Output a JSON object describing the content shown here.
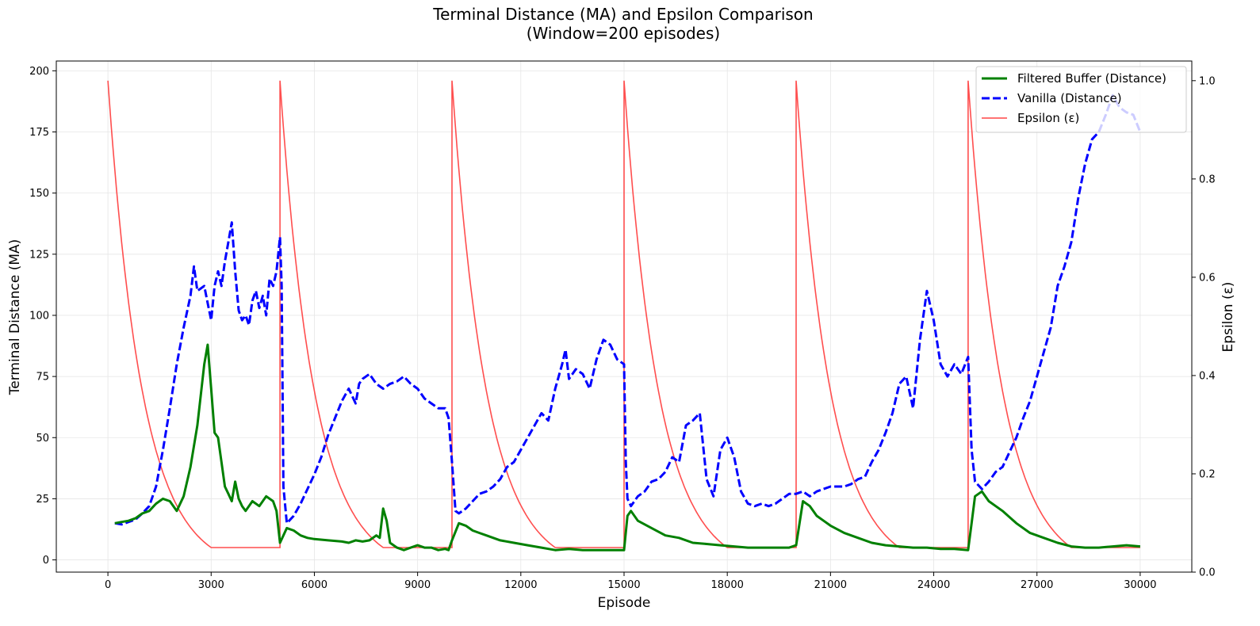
{
  "chart_data": {
    "type": "line",
    "title": [
      "Terminal Distance (MA) and Epsilon Comparison",
      "(Window=200 episodes)"
    ],
    "xlabel": "Episode",
    "ylabel": "Terminal Distance (MA)",
    "y2label": "Epsilon (ε)",
    "xlim": [
      -1500,
      31500
    ],
    "ylim": [
      -5,
      204
    ],
    "y2lim": [
      0,
      1.04
    ],
    "xticks": [
      0,
      3000,
      6000,
      9000,
      12000,
      15000,
      18000,
      21000,
      24000,
      27000,
      30000
    ],
    "xtick_labels": [
      "0",
      "3000",
      "6000",
      "9000",
      "12000",
      "15000",
      "18000",
      "21000",
      "24000",
      "27000",
      "30000"
    ],
    "yticks": [
      0,
      25,
      50,
      75,
      100,
      125,
      150,
      175,
      200
    ],
    "ytick_labels": [
      "0",
      "25",
      "50",
      "75",
      "100",
      "125",
      "150",
      "175",
      "200"
    ],
    "y2ticks": [
      0.0,
      0.2,
      0.4,
      0.6,
      0.8,
      1.0
    ],
    "y2tick_labels": [
      "0.0",
      "0.2",
      "0.4",
      "0.6",
      "0.8",
      "1.0"
    ],
    "grid": true,
    "legend_position": "top-right",
    "series": [
      {
        "name": "Filtered Buffer (Distance)",
        "axis": "left",
        "color": "#008000",
        "style": "solid",
        "points": [
          [
            200,
            15
          ],
          [
            400,
            15.5
          ],
          [
            600,
            16
          ],
          [
            800,
            17
          ],
          [
            1000,
            19
          ],
          [
            1200,
            20
          ],
          [
            1400,
            23
          ],
          [
            1600,
            25
          ],
          [
            1800,
            24
          ],
          [
            2000,
            20
          ],
          [
            2200,
            26
          ],
          [
            2400,
            38
          ],
          [
            2600,
            55
          ],
          [
            2800,
            80
          ],
          [
            2900,
            88
          ],
          [
            3000,
            70
          ],
          [
            3100,
            52
          ],
          [
            3200,
            50
          ],
          [
            3300,
            40
          ],
          [
            3400,
            30
          ],
          [
            3500,
            27
          ],
          [
            3600,
            24
          ],
          [
            3700,
            32
          ],
          [
            3800,
            25
          ],
          [
            3900,
            22
          ],
          [
            4000,
            20
          ],
          [
            4200,
            24
          ],
          [
            4400,
            22
          ],
          [
            4600,
            26
          ],
          [
            4800,
            24
          ],
          [
            4900,
            20
          ],
          [
            5000,
            7
          ],
          [
            5100,
            10
          ],
          [
            5200,
            13
          ],
          [
            5400,
            12
          ],
          [
            5600,
            10
          ],
          [
            5800,
            9
          ],
          [
            6000,
            8.5
          ],
          [
            6400,
            8
          ],
          [
            6800,
            7.5
          ],
          [
            7000,
            7
          ],
          [
            7200,
            8
          ],
          [
            7400,
            7.5
          ],
          [
            7600,
            8
          ],
          [
            7800,
            10
          ],
          [
            7900,
            9
          ],
          [
            8000,
            21
          ],
          [
            8100,
            16
          ],
          [
            8200,
            7
          ],
          [
            8400,
            5
          ],
          [
            8600,
            4
          ],
          [
            8800,
            5
          ],
          [
            9000,
            6
          ],
          [
            9200,
            5
          ],
          [
            9400,
            5
          ],
          [
            9600,
            4
          ],
          [
            9800,
            4.5
          ],
          [
            9900,
            4
          ],
          [
            10000,
            8
          ],
          [
            10200,
            15
          ],
          [
            10400,
            14
          ],
          [
            10600,
            12
          ],
          [
            10800,
            11
          ],
          [
            11000,
            10
          ],
          [
            11400,
            8
          ],
          [
            11800,
            7
          ],
          [
            12200,
            6
          ],
          [
            12600,
            5
          ],
          [
            13000,
            4
          ],
          [
            13400,
            4.5
          ],
          [
            13800,
            4
          ],
          [
            14200,
            4
          ],
          [
            14600,
            4
          ],
          [
            15000,
            4
          ],
          [
            15100,
            18
          ],
          [
            15200,
            20
          ],
          [
            15400,
            16
          ],
          [
            15800,
            13
          ],
          [
            16200,
            10
          ],
          [
            16600,
            9
          ],
          [
            17000,
            7
          ],
          [
            17400,
            6.5
          ],
          [
            17800,
            6
          ],
          [
            18200,
            5.5
          ],
          [
            18600,
            5
          ],
          [
            19000,
            5
          ],
          [
            19400,
            5
          ],
          [
            19800,
            5
          ],
          [
            20000,
            6
          ],
          [
            20200,
            24
          ],
          [
            20400,
            22
          ],
          [
            20600,
            18
          ],
          [
            20800,
            16
          ],
          [
            21000,
            14
          ],
          [
            21400,
            11
          ],
          [
            21800,
            9
          ],
          [
            22200,
            7
          ],
          [
            22600,
            6
          ],
          [
            23000,
            5.5
          ],
          [
            23400,
            5
          ],
          [
            23800,
            5
          ],
          [
            24200,
            4.5
          ],
          [
            24600,
            4.5
          ],
          [
            25000,
            4
          ],
          [
            25100,
            15
          ],
          [
            25200,
            26
          ],
          [
            25400,
            28
          ],
          [
            25600,
            24
          ],
          [
            25800,
            22
          ],
          [
            26000,
            20
          ],
          [
            26400,
            15
          ],
          [
            26800,
            11
          ],
          [
            27200,
            9
          ],
          [
            27600,
            7
          ],
          [
            28000,
            5.5
          ],
          [
            28400,
            5
          ],
          [
            28800,
            5
          ],
          [
            29200,
            5.5
          ],
          [
            29600,
            6
          ],
          [
            30000,
            5.5
          ]
        ]
      },
      {
        "name": "Vanilla (Distance)",
        "axis": "left",
        "color": "#0000ff",
        "style": "dashed",
        "points": [
          [
            200,
            15
          ],
          [
            400,
            14.5
          ],
          [
            600,
            15.5
          ],
          [
            800,
            16.5
          ],
          [
            1000,
            19
          ],
          [
            1200,
            22
          ],
          [
            1400,
            30
          ],
          [
            1600,
            45
          ],
          [
            1800,
            62
          ],
          [
            2000,
            80
          ],
          [
            2200,
            95
          ],
          [
            2400,
            108
          ],
          [
            2500,
            120
          ],
          [
            2600,
            110
          ],
          [
            2800,
            112
          ],
          [
            2900,
            105
          ],
          [
            3000,
            98
          ],
          [
            3100,
            112
          ],
          [
            3200,
            118
          ],
          [
            3300,
            112
          ],
          [
            3400,
            122
          ],
          [
            3500,
            130
          ],
          [
            3600,
            138
          ],
          [
            3700,
            118
          ],
          [
            3800,
            102
          ],
          [
            3900,
            98
          ],
          [
            4000,
            100
          ],
          [
            4100,
            96
          ],
          [
            4200,
            106
          ],
          [
            4300,
            110
          ],
          [
            4400,
            103
          ],
          [
            4500,
            108
          ],
          [
            4600,
            100
          ],
          [
            4700,
            115
          ],
          [
            4800,
            112
          ],
          [
            4900,
            118
          ],
          [
            5000,
            132
          ],
          [
            5050,
            112
          ],
          [
            5100,
            30
          ],
          [
            5200,
            15
          ],
          [
            5400,
            18
          ],
          [
            5600,
            23
          ],
          [
            5800,
            29
          ],
          [
            6000,
            35
          ],
          [
            6200,
            42
          ],
          [
            6400,
            51
          ],
          [
            6600,
            58
          ],
          [
            6800,
            65
          ],
          [
            7000,
            70
          ],
          [
            7200,
            64
          ],
          [
            7300,
            72
          ],
          [
            7400,
            74
          ],
          [
            7600,
            76
          ],
          [
            7800,
            72
          ],
          [
            8000,
            70
          ],
          [
            8200,
            72
          ],
          [
            8400,
            73
          ],
          [
            8600,
            75
          ],
          [
            8800,
            72
          ],
          [
            9000,
            70
          ],
          [
            9200,
            66
          ],
          [
            9400,
            64
          ],
          [
            9600,
            62
          ],
          [
            9800,
            62
          ],
          [
            9900,
            58
          ],
          [
            10000,
            40
          ],
          [
            10100,
            20
          ],
          [
            10200,
            19
          ],
          [
            10400,
            21
          ],
          [
            10600,
            24
          ],
          [
            10800,
            27
          ],
          [
            11000,
            28
          ],
          [
            11200,
            30
          ],
          [
            11400,
            33
          ],
          [
            11600,
            38
          ],
          [
            11800,
            40
          ],
          [
            12000,
            45
          ],
          [
            12200,
            50
          ],
          [
            12400,
            55
          ],
          [
            12600,
            60
          ],
          [
            12800,
            57
          ],
          [
            13000,
            70
          ],
          [
            13200,
            80
          ],
          [
            13300,
            86
          ],
          [
            13400,
            74
          ],
          [
            13600,
            78
          ],
          [
            13800,
            76
          ],
          [
            14000,
            70
          ],
          [
            14200,
            82
          ],
          [
            14400,
            90
          ],
          [
            14600,
            88
          ],
          [
            14800,
            82
          ],
          [
            15000,
            80
          ],
          [
            15050,
            40
          ],
          [
            15100,
            25
          ],
          [
            15200,
            22
          ],
          [
            15400,
            26
          ],
          [
            15600,
            28
          ],
          [
            15800,
            32
          ],
          [
            16000,
            33
          ],
          [
            16200,
            36
          ],
          [
            16400,
            42
          ],
          [
            16600,
            40
          ],
          [
            16800,
            55
          ],
          [
            17000,
            57
          ],
          [
            17200,
            60
          ],
          [
            17400,
            33
          ],
          [
            17600,
            26
          ],
          [
            17800,
            45
          ],
          [
            18000,
            50
          ],
          [
            18200,
            42
          ],
          [
            18400,
            28
          ],
          [
            18600,
            23
          ],
          [
            18800,
            22
          ],
          [
            19000,
            23
          ],
          [
            19200,
            22
          ],
          [
            19400,
            23
          ],
          [
            19600,
            25
          ],
          [
            19800,
            27
          ],
          [
            20000,
            27
          ],
          [
            20200,
            28
          ],
          [
            20400,
            26
          ],
          [
            20600,
            28
          ],
          [
            20800,
            29
          ],
          [
            21000,
            30
          ],
          [
            21200,
            30
          ],
          [
            21400,
            30
          ],
          [
            21600,
            31
          ],
          [
            21800,
            33
          ],
          [
            22000,
            34
          ],
          [
            22200,
            40
          ],
          [
            22400,
            45
          ],
          [
            22600,
            52
          ],
          [
            22800,
            60
          ],
          [
            23000,
            72
          ],
          [
            23200,
            75
          ],
          [
            23400,
            62
          ],
          [
            23600,
            90
          ],
          [
            23800,
            110
          ],
          [
            24000,
            98
          ],
          [
            24200,
            80
          ],
          [
            24400,
            75
          ],
          [
            24600,
            80
          ],
          [
            24800,
            76
          ],
          [
            25000,
            83
          ],
          [
            25100,
            45
          ],
          [
            25200,
            32
          ],
          [
            25400,
            29
          ],
          [
            25600,
            32
          ],
          [
            25800,
            36
          ],
          [
            26000,
            38
          ],
          [
            26200,
            44
          ],
          [
            26400,
            50
          ],
          [
            26600,
            58
          ],
          [
            26800,
            65
          ],
          [
            27000,
            75
          ],
          [
            27200,
            85
          ],
          [
            27400,
            95
          ],
          [
            27600,
            112
          ],
          [
            27800,
            120
          ],
          [
            28000,
            130
          ],
          [
            28200,
            148
          ],
          [
            28400,
            162
          ],
          [
            28600,
            172
          ],
          [
            28800,
            175
          ],
          [
            29000,
            182
          ],
          [
            29200,
            190
          ],
          [
            29400,
            185
          ],
          [
            29600,
            183
          ],
          [
            29800,
            182
          ],
          [
            30000,
            175
          ]
        ]
      },
      {
        "name": "Epsilon (ε)",
        "axis": "right",
        "color": "#ff4545",
        "style": "solid",
        "schedule": {
          "segments": [
            [
              0,
              5000
            ],
            [
              5000,
              10000
            ],
            [
              10000,
              15000
            ],
            [
              15000,
              20000
            ],
            [
              20000,
              25000
            ],
            [
              25000,
              30000
            ]
          ],
          "start": 1.0,
          "min": 0.05,
          "decay_episodes": 3000
        }
      }
    ]
  }
}
